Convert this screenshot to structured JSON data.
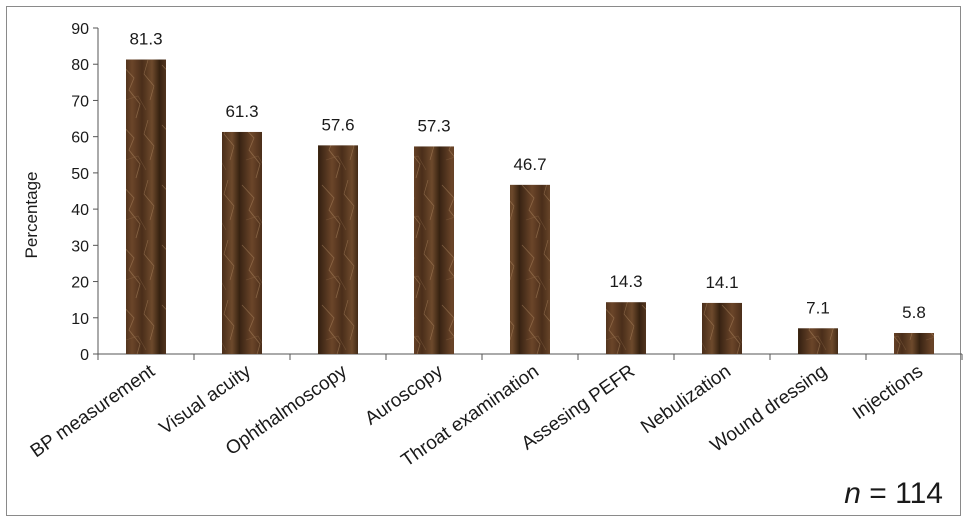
{
  "chart_data": {
    "type": "bar",
    "categories": [
      "BP measurement",
      "Visual acuity",
      "Ophthalmoscopy",
      "Auroscopy",
      "Throat examination",
      "Assesing PEFR",
      "Nebulization",
      "Wound dressing",
      "Injections"
    ],
    "values": [
      81.3,
      61.3,
      57.6,
      57.3,
      46.7,
      14.3,
      14.1,
      7.1,
      5.8
    ],
    "data_labels": [
      "81.3",
      "61.3",
      "57.6",
      "57.3",
      "46.7",
      "14.3",
      "14.1",
      "7.1",
      "5.8"
    ],
    "ylabel": "Percentage",
    "xlabel": "",
    "ylim": [
      0,
      90
    ],
    "yticks": [
      0,
      10,
      20,
      30,
      40,
      50,
      60,
      70,
      80,
      90
    ],
    "grid": false,
    "legend": "none",
    "bar_color": "#5a3a22",
    "annotation": {
      "italic": "n",
      "rest": " = 114"
    }
  }
}
